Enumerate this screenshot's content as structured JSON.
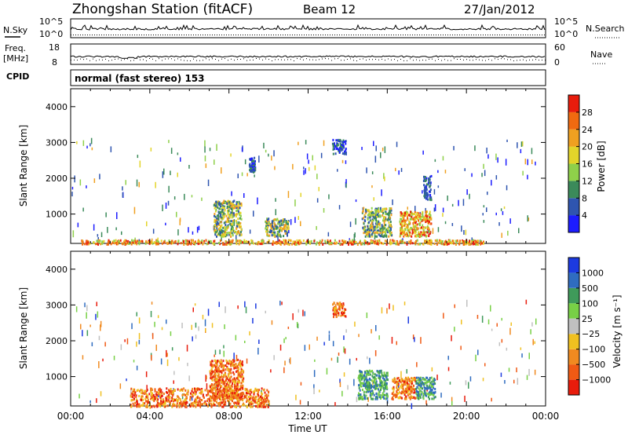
{
  "header": {
    "station": "Zhongshan Station (fitACF)",
    "beam": "Beam 12",
    "date": "27/Jan/2012"
  },
  "summary_panels": {
    "nsky_label": "N.Sky",
    "nsearch_label": "N.Search",
    "nsky_ticks": [
      "10^5",
      "10^0"
    ],
    "nsearch_ticks": [
      "10^5",
      "10^0"
    ],
    "freq_label": "Freq.",
    "freq_unit": "[MHz]",
    "freq_ticks": [
      "18",
      "8"
    ],
    "nave_label": "Nave",
    "nave_ticks": [
      "60",
      "0"
    ],
    "cpid_label": "CPID",
    "cpid_text": "normal (fast stereo) 153"
  },
  "chart_data": [
    {
      "type": "heatmap",
      "name": "power",
      "xlabel": "",
      "ylabel": "Slant Range [km]",
      "xlim": [
        "00:00",
        "24:00"
      ],
      "ylim": [
        180,
        4500
      ],
      "y_ticks": [
        "1000",
        "2000",
        "3000",
        "4000"
      ],
      "colorbar": {
        "label": "Power [dB]",
        "ticks": [
          "4",
          "8",
          "12",
          "16",
          "20",
          "24",
          "28"
        ],
        "colors": [
          "#1c1cff",
          "#2f55b0",
          "#3b8a5a",
          "#8fd04a",
          "#e3d42a",
          "#f0a020",
          "#f06a10",
          "#e81c0c"
        ]
      },
      "features": [
        {
          "time_h": [
            0.5,
            21.0
          ],
          "range_km": [
            180,
            300
          ],
          "level": "high"
        },
        {
          "time_h": [
            7.2,
            8.6
          ],
          "range_km": [
            400,
            1400
          ],
          "level": "medium"
        },
        {
          "time_h": [
            9.0,
            9.3
          ],
          "range_km": [
            2200,
            2600
          ],
          "level": "low"
        },
        {
          "time_h": [
            9.8,
            11.0
          ],
          "range_km": [
            400,
            900
          ],
          "level": "medium"
        },
        {
          "time_h": [
            13.2,
            13.9
          ],
          "range_km": [
            2700,
            3100
          ],
          "level": "low"
        },
        {
          "time_h": [
            14.7,
            16.2
          ],
          "range_km": [
            400,
            1200
          ],
          "level": "medium"
        },
        {
          "time_h": [
            16.6,
            18.2
          ],
          "range_km": [
            400,
            1100
          ],
          "level": "high"
        },
        {
          "time_h": [
            17.8,
            18.2
          ],
          "range_km": [
            1400,
            2100
          ],
          "level": "low"
        }
      ]
    },
    {
      "type": "heatmap",
      "name": "velocity",
      "xlabel": "Time UT",
      "ylabel": "Slant Range [km]",
      "xlim": [
        "00:00",
        "24:00"
      ],
      "ylim": [
        180,
        4500
      ],
      "x_ticks": [
        "00:00",
        "04:00",
        "08:00",
        "12:00",
        "16:00",
        "20:00",
        "00:00"
      ],
      "y_ticks": [
        "1000",
        "2000",
        "3000",
        "4000"
      ],
      "colorbar": {
        "label": "Velocity [m s⁻¹]",
        "ticks": [
          "1000",
          "500",
          "100",
          "25",
          "−25",
          "−100",
          "−500",
          "−1000"
        ],
        "colors": [
          "#1c3ae0",
          "#2f6cc0",
          "#3f9a5a",
          "#78d046",
          "#c0c0c0",
          "#f0c020",
          "#f08a20",
          "#f05a14",
          "#e81c0c"
        ]
      },
      "features": [
        {
          "time_h": [
            3.0,
            10.0
          ],
          "range_km": [
            180,
            700
          ],
          "level": "negative"
        },
        {
          "time_h": [
            7.0,
            8.7
          ],
          "range_km": [
            400,
            1500
          ],
          "level": "negative"
        },
        {
          "time_h": [
            13.2,
            13.9
          ],
          "range_km": [
            2700,
            3100
          ],
          "level": "negative"
        },
        {
          "time_h": [
            14.5,
            16.0
          ],
          "range_km": [
            400,
            1200
          ],
          "level": "positive"
        },
        {
          "time_h": [
            16.2,
            17.4
          ],
          "range_km": [
            400,
            1000
          ],
          "level": "negative"
        },
        {
          "time_h": [
            17.4,
            18.4
          ],
          "range_km": [
            400,
            1000
          ],
          "level": "positive"
        }
      ]
    }
  ]
}
